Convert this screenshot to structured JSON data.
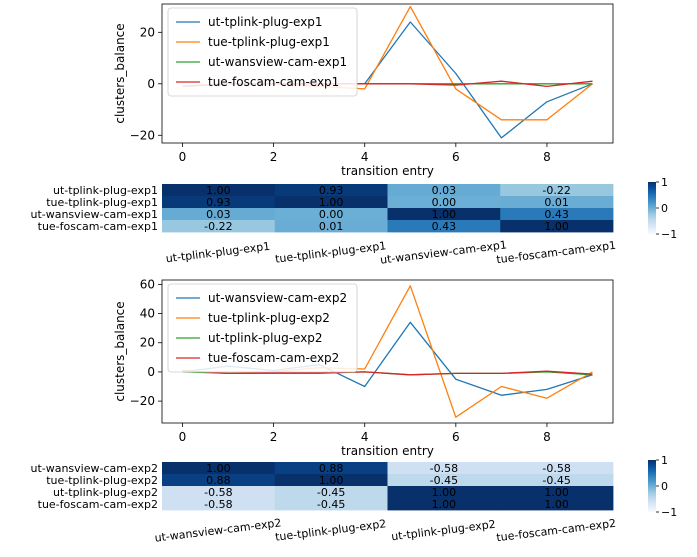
{
  "chart_data": [
    {
      "type": "line",
      "xlabel": "transition entry",
      "ylabel": "clusters_balance",
      "xlim": [
        -0.45,
        9.45
      ],
      "ylim": [
        -23,
        31
      ],
      "xticks": [
        0,
        2,
        4,
        6,
        8
      ],
      "yticks": [
        -20,
        0,
        20
      ],
      "legend_position": "upper-left",
      "x": [
        0,
        1,
        2,
        3,
        4,
        5,
        6,
        7,
        8,
        9
      ],
      "series": [
        {
          "name": "ut-tplink-plug-exp1",
          "color": "#1f77b4",
          "values": [
            -1,
            0,
            0,
            0,
            0,
            24,
            4,
            -21,
            -7,
            0
          ]
        },
        {
          "name": "tue-tplink-plug-exp1",
          "color": "#ff7f0e",
          "values": [
            -1,
            0,
            0,
            -1,
            -2,
            30,
            -2,
            -14,
            -14,
            0
          ]
        },
        {
          "name": "ut-wansview-cam-exp1",
          "color": "#2ca02c",
          "values": [
            -1,
            0,
            0,
            0,
            0,
            0,
            0,
            0,
            0,
            0
          ]
        },
        {
          "name": "tue-foscam-cam-exp1",
          "color": "#d62728",
          "values": [
            -1,
            0,
            0,
            0,
            0,
            0,
            -0.5,
            1,
            -1,
            1
          ]
        }
      ]
    },
    {
      "type": "heatmap",
      "rows": [
        "ut-tplink-plug-exp1",
        "tue-tplink-plug-exp1",
        "ut-wansview-cam-exp1",
        "tue-foscam-cam-exp1"
      ],
      "cols": [
        "ut-tplink-plug-exp1",
        "tue-tplink-plug-exp1",
        "ut-wansview-cam-exp1",
        "tue-foscam-cam-exp1"
      ],
      "values": [
        [
          1.0,
          0.93,
          0.03,
          -0.22
        ],
        [
          0.93,
          1.0,
          0.0,
          0.01
        ],
        [
          0.03,
          0.0,
          1.0,
          0.43
        ],
        [
          -0.22,
          0.01,
          0.43,
          1.0
        ]
      ],
      "labels": [
        [
          "1.00",
          "0.93",
          "0.03",
          "-0.22"
        ],
        [
          "0.93",
          "1.00",
          "0.00",
          "0.01"
        ],
        [
          "0.03",
          "0.00",
          "1.00",
          "0.43"
        ],
        [
          "-0.22",
          "0.01",
          "0.43",
          "1.00"
        ]
      ],
      "colormap": "Blues",
      "vmin": -1,
      "vmax": 1,
      "colorbar_ticks": [
        {
          "value": 1,
          "label": "1"
        },
        {
          "value": 0,
          "label": "0"
        },
        {
          "value": -1,
          "label": "−1"
        }
      ]
    },
    {
      "type": "line",
      "xlabel": "transition entry",
      "ylabel": "clusters_balance",
      "xlim": [
        -0.45,
        9.45
      ],
      "ylim": [
        -35,
        63
      ],
      "xticks": [
        0,
        2,
        4,
        6,
        8
      ],
      "yticks": [
        -20,
        0,
        20,
        40,
        60
      ],
      "legend_position": "upper-left",
      "x": [
        0,
        1,
        2,
        3,
        4,
        5,
        6,
        7,
        8,
        9
      ],
      "series": [
        {
          "name": "ut-wansview-cam-exp2",
          "color": "#1f77b4",
          "values": [
            0,
            4,
            1,
            5,
            -10,
            34,
            -5,
            -16,
            -12,
            -2
          ]
        },
        {
          "name": "tue-tplink-plug-exp2",
          "color": "#ff7f0e",
          "values": [
            1,
            -1,
            0,
            3,
            2,
            59,
            -31,
            -10,
            -18,
            0
          ]
        },
        {
          "name": "ut-tplink-plug-exp2",
          "color": "#2ca02c",
          "values": [
            0,
            -1,
            -1,
            -1,
            0,
            -2,
            -1,
            -1,
            0,
            -2
          ]
        },
        {
          "name": "tue-foscam-cam-exp2",
          "color": "#d62728",
          "values": [
            1,
            -1,
            -0.5,
            -0.5,
            0,
            -2,
            -1,
            -1,
            0.5,
            -1.5
          ]
        }
      ]
    },
    {
      "type": "heatmap",
      "rows": [
        "ut-wansview-cam-exp2",
        "tue-tplink-plug-exp2",
        "ut-tplink-plug-exp2",
        "tue-foscam-cam-exp2"
      ],
      "cols": [
        "ut-wansview-cam-exp2",
        "tue-tplink-plug-exp2",
        "ut-tplink-plug-exp2",
        "tue-foscam-cam-exp2"
      ],
      "values": [
        [
          1.0,
          0.88,
          -0.58,
          -0.58
        ],
        [
          0.88,
          1.0,
          -0.45,
          -0.45
        ],
        [
          -0.58,
          -0.45,
          1.0,
          1.0
        ],
        [
          -0.58,
          -0.45,
          1.0,
          1.0
        ]
      ],
      "labels": [
        [
          "1.00",
          "0.88",
          "-0.58",
          "-0.58"
        ],
        [
          "0.88",
          "1.00",
          "-0.45",
          "-0.45"
        ],
        [
          "-0.58",
          "-0.45",
          "1.00",
          "1.00"
        ],
        [
          "-0.58",
          "-0.45",
          "1.00",
          "1.00"
        ]
      ],
      "colormap": "Blues",
      "vmin": -1,
      "vmax": 1,
      "colorbar_ticks": [
        {
          "value": 1,
          "label": "1"
        },
        {
          "value": 0,
          "label": "0"
        },
        {
          "value": -1,
          "label": "−1"
        }
      ]
    }
  ]
}
